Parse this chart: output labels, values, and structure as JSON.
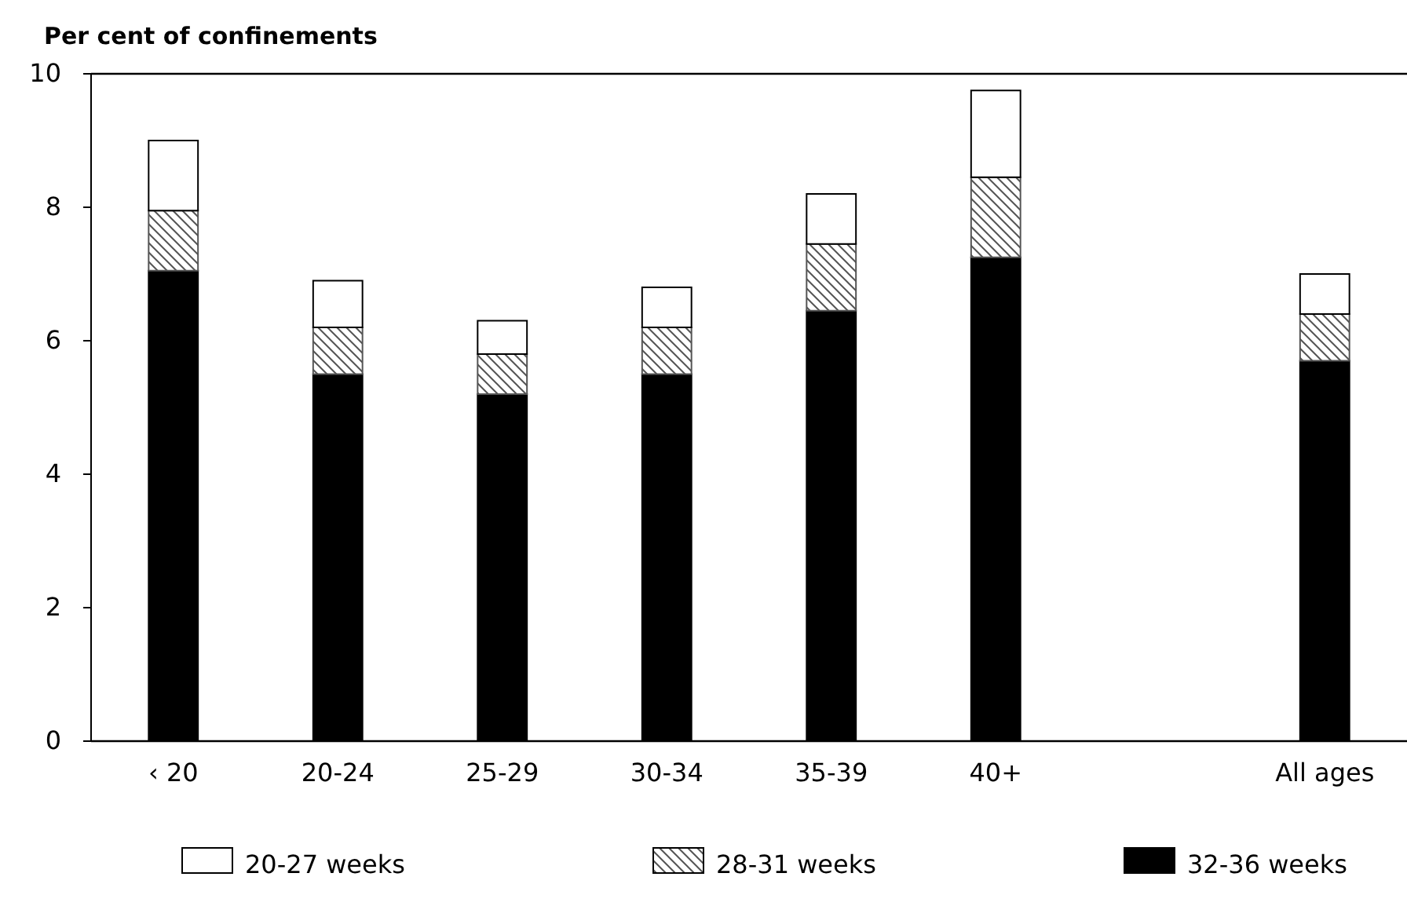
{
  "chart_data": {
    "type": "bar",
    "stacked": true,
    "ylabel": "Per cent of confinements",
    "categories": [
      "‹ 20",
      "20-24",
      "25-29",
      "30-34",
      "35-39",
      "40+",
      null,
      "All ages"
    ],
    "series": [
      {
        "name": "32-36 weeks",
        "color": "#000000",
        "values": [
          7.05,
          5.5,
          5.2,
          5.5,
          6.45,
          7.25,
          null,
          5.7
        ]
      },
      {
        "name": "28-31 weeks",
        "color": "#555555",
        "values": [
          0.9,
          0.7,
          0.6,
          0.7,
          1.0,
          1.2,
          null,
          0.7
        ]
      },
      {
        "name": "20-27 weeks",
        "color": "#ffffff",
        "values": [
          1.05,
          0.7,
          0.5,
          0.6,
          0.75,
          1.3,
          null,
          0.6
        ]
      }
    ],
    "ylim": [
      0,
      10
    ],
    "yticks": [
      0,
      2,
      4,
      6,
      8,
      10
    ],
    "grid": false,
    "legend": "bottom"
  }
}
